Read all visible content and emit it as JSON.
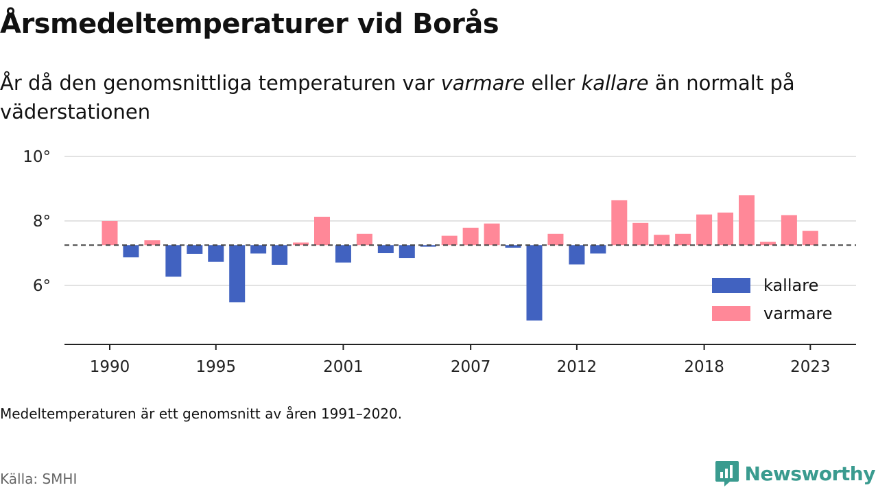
{
  "title": "Årsmedeltemperaturer vid Borås",
  "subtitle": {
    "part1": "År då den genomsnittliga temperaturen var ",
    "warm_word": "varmare",
    "part2": " eller ",
    "cold_word": "kallare",
    "part3": " än normalt på väderstationen"
  },
  "footnote": "Medeltemperaturen är ett genomsnitt av åren 1991–2020.",
  "source": "Källa: SMHI",
  "brand": {
    "name": "Newsworthy",
    "icon": "newsworthy-logo-icon",
    "color": "#3a9b8f"
  },
  "chart_data": {
    "type": "bar",
    "baseline": 7.25,
    "ylim": [
      4.2,
      10.3
    ],
    "y_ticks": [
      10,
      8,
      6
    ],
    "y_tick_labels": [
      "10°",
      "8°",
      "6°"
    ],
    "x_ticks": [
      "1990",
      "1995",
      "2001",
      "2007",
      "2012",
      "2018",
      "2023"
    ],
    "grid": true,
    "legend_position": "bottom-right",
    "colors": {
      "kallare": "#4162c0",
      "varmare": "#ff8898"
    },
    "legend": [
      {
        "key": "kallare",
        "label": "kallare"
      },
      {
        "key": "varmare",
        "label": "varmare"
      }
    ],
    "categories": [
      "1990",
      "1991",
      "1992",
      "1993",
      "1994",
      "1995",
      "1996",
      "1997",
      "1998",
      "1999",
      "2000",
      "2001",
      "2002",
      "2003",
      "2004",
      "2005",
      "2006",
      "2007",
      "2008",
      "2009",
      "2010",
      "2011",
      "2012",
      "2013",
      "2014",
      "2015",
      "2016",
      "2017",
      "2018",
      "2019",
      "2020",
      "2021",
      "2022",
      "2023"
    ],
    "values": [
      8.0,
      6.87,
      7.4,
      6.27,
      6.98,
      6.73,
      5.48,
      6.99,
      6.64,
      7.33,
      8.13,
      6.71,
      7.6,
      7.0,
      6.85,
      7.2,
      7.54,
      7.79,
      7.92,
      7.17,
      4.91,
      7.6,
      6.65,
      6.99,
      8.64,
      7.94,
      7.57,
      7.6,
      8.2,
      8.26,
      8.8,
      7.35,
      8.18,
      7.69
    ]
  }
}
